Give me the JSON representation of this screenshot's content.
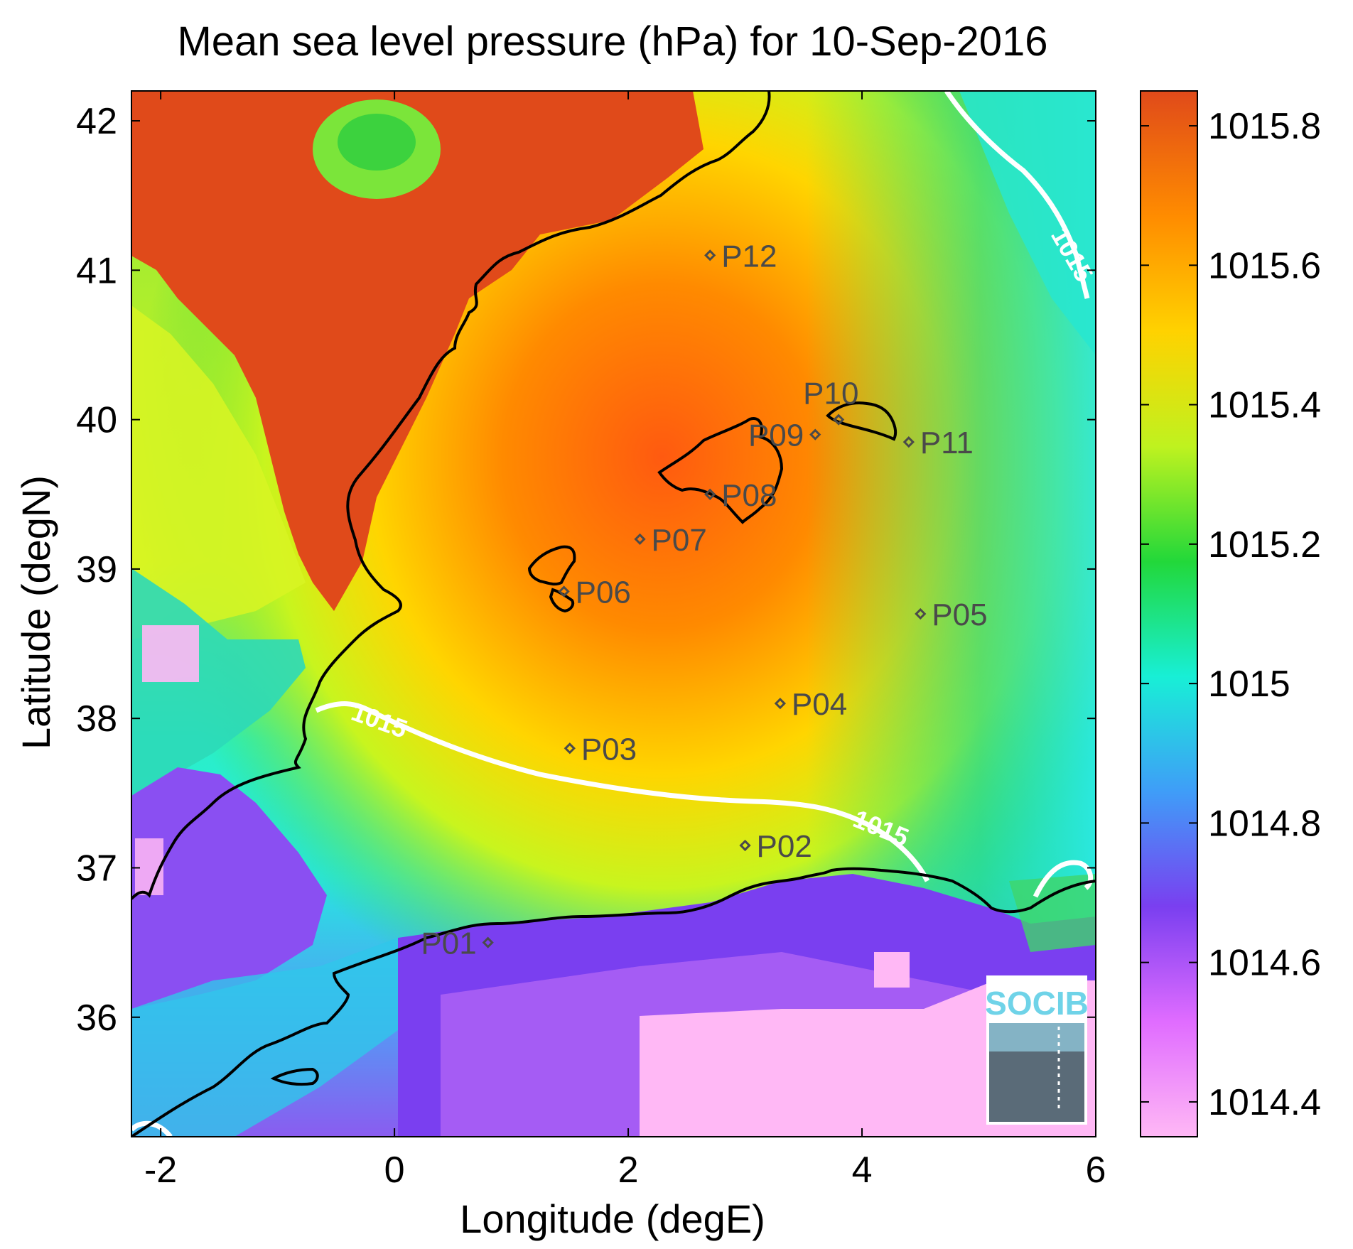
{
  "title": "Mean sea level pressure (hPa) for 10-Sep-2016",
  "xlabel": "Longitude (degE)",
  "ylabel": "Latitude (degN)",
  "x_ticks": [
    "-2",
    "0",
    "2",
    "4",
    "6"
  ],
  "y_ticks": [
    "42",
    "41",
    "40",
    "39",
    "38",
    "37",
    "36"
  ],
  "colorbar": {
    "ticks": [
      "1015.8",
      "1015.6",
      "1015.4",
      "1015.2",
      "1015",
      "1014.8",
      "1014.6",
      "1014.4"
    ],
    "colors": [
      "#ffb8f5",
      "#e06cff",
      "#7a3ff0",
      "#3f9df8",
      "#18efd6",
      "#22d83a",
      "#bff21f",
      "#ffd200",
      "#ff8c00",
      "#e04a1a"
    ]
  },
  "contour_label": "1015",
  "stations": [
    {
      "id": "P01",
      "lon": 0.8,
      "lat": 36.5
    },
    {
      "id": "P02",
      "lon": 3.0,
      "lat": 37.15
    },
    {
      "id": "P03",
      "lon": 1.5,
      "lat": 37.8
    },
    {
      "id": "P04",
      "lon": 3.3,
      "lat": 38.1
    },
    {
      "id": "P05",
      "lon": 4.5,
      "lat": 38.7
    },
    {
      "id": "P06",
      "lon": 1.45,
      "lat": 38.85
    },
    {
      "id": "P07",
      "lon": 2.1,
      "lat": 39.2
    },
    {
      "id": "P08",
      "lon": 2.7,
      "lat": 39.5
    },
    {
      "id": "P09",
      "lon": 3.6,
      "lat": 39.9
    },
    {
      "id": "P10",
      "lon": 3.8,
      "lat": 40.0
    },
    {
      "id": "P11",
      "lon": 4.4,
      "lat": 39.85
    },
    {
      "id": "P12",
      "lon": 2.7,
      "lat": 41.1
    }
  ],
  "logo": "SOCIB",
  "colors": {
    "coastline": "#000000",
    "contour": "#ffffff",
    "station_marker": "#4a4a4a"
  }
}
